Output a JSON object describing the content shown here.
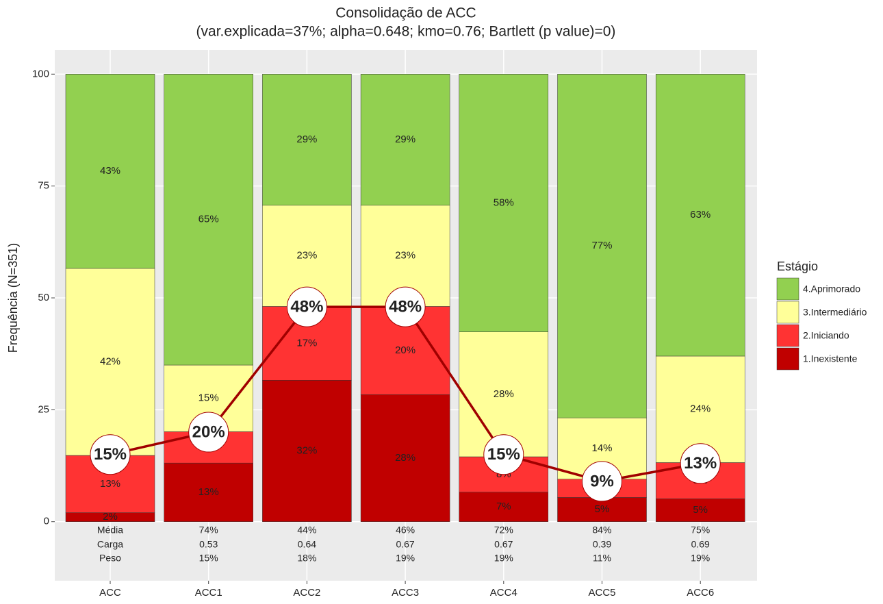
{
  "chart_data": {
    "type": "stacked_bar",
    "title": "Consolidação de ACC",
    "subtitle": "(var.explicada=37%; alpha=0.648; kmo=0.76; Bartlett (p value)=0)",
    "y_label": "Frequência (N=351)",
    "categories": [
      "ACC",
      "ACC1",
      "ACC2",
      "ACC3",
      "ACC4",
      "ACC5",
      "ACC6"
    ],
    "legend_title": "Estágio",
    "series": [
      {
        "name": "1.Inexistente",
        "color": "#c00000",
        "values": [
          2.0,
          13.1,
          31.6,
          28.4,
          6.6,
          5.4,
          5.1
        ],
        "value_labels": [
          "2%",
          "13%",
          "32%",
          "28%",
          "7%",
          "5%",
          "5%"
        ]
      },
      {
        "name": "2.Iniciando",
        "color": "#ff3333",
        "values": [
          12.8,
          7.0,
          16.5,
          19.7,
          7.9,
          4.1,
          8.1
        ],
        "value_labels": [
          "13%",
          "7%",
          "17%",
          "20%",
          "8%",
          "4%",
          "8%"
        ]
      },
      {
        "name": "3.Intermediário",
        "color": "#ffff99",
        "values": [
          41.8,
          14.9,
          22.6,
          22.6,
          27.9,
          13.7,
          23.8
        ],
        "value_labels": [
          "42%",
          "15%",
          "23%",
          "23%",
          "28%",
          "14%",
          "24%"
        ]
      },
      {
        "name": "4.Aprimorado",
        "color": "#92d050",
        "values": [
          43.4,
          65.0,
          29.3,
          29.3,
          57.6,
          76.8,
          63.0
        ],
        "value_labels": [
          "43%",
          "65%",
          "29%",
          "29%",
          "58%",
          "77%",
          "63%"
        ]
      }
    ],
    "line": {
      "color": "#a00000",
      "values": [
        15,
        20,
        48,
        48,
        15,
        9,
        13
      ],
      "value_labels": [
        "15%",
        "20%",
        "48%",
        "48%",
        "15%",
        "9%",
        "13%"
      ]
    },
    "footer_table": {
      "row_labels": [
        "Média",
        "Carga",
        "Peso"
      ],
      "rows": [
        [
          "74%",
          "44%",
          "46%",
          "72%",
          "84%",
          "75%"
        ],
        [
          "0.53",
          "0.64",
          "0.67",
          "0.67",
          "0.39",
          "0.69"
        ],
        [
          "15%",
          "18%",
          "19%",
          "19%",
          "11%",
          "19%"
        ]
      ]
    },
    "ylim": [
      -13.2,
      105.4
    ],
    "yticks": [
      0,
      25,
      50,
      75,
      100
    ],
    "grid": true,
    "legend": "right"
  }
}
